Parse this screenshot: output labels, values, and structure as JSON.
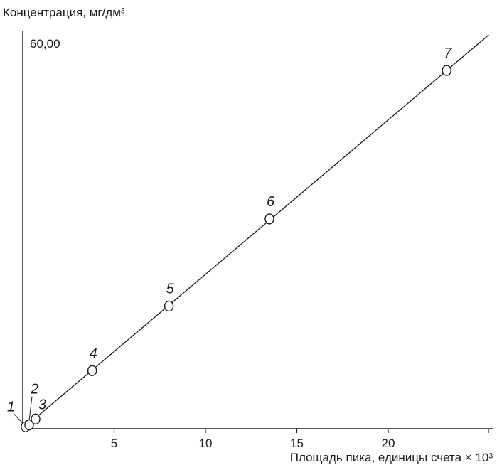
{
  "chart_data": {
    "type": "scatter",
    "ylabel": "Концентрация, мг/дм³",
    "xlabel": "Площадь пика, единицы счета × 10³",
    "y_max_label": "60,00",
    "xlim": [
      0,
      25.5
    ],
    "ylim": [
      0,
      60
    ],
    "x_ticks": [
      5,
      10,
      15,
      20
    ],
    "x_tick_labels": [
      "5",
      "10",
      "15",
      "20"
    ],
    "grid": false,
    "legend": "none",
    "points": [
      {
        "label": "1",
        "x": 0.15,
        "y": 0.3
      },
      {
        "label": "2",
        "x": 0.35,
        "y": 0.6
      },
      {
        "label": "3",
        "x": 0.7,
        "y": 1.5
      },
      {
        "label": "4",
        "x": 3.8,
        "y": 9.0
      },
      {
        "label": "5",
        "x": 8.0,
        "y": 19.0
      },
      {
        "label": "6",
        "x": 13.5,
        "y": 32.5
      },
      {
        "label": "7",
        "x": 23.2,
        "y": 55.5
      }
    ],
    "fit_line": {
      "x": [
        0,
        25.5
      ],
      "y": [
        0,
        61.0
      ]
    },
    "colors": {
      "ink": "#1a1a1a",
      "background": "#ffffff"
    }
  }
}
